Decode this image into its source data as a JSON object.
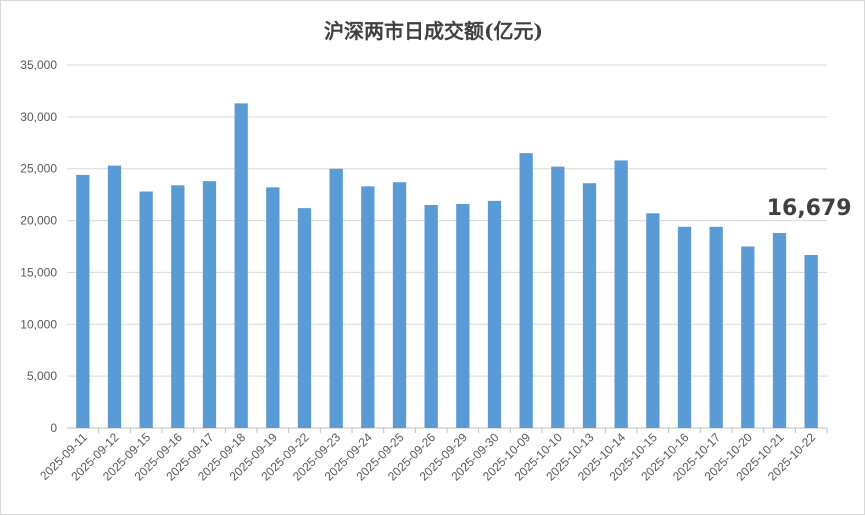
{
  "chart_data": {
    "type": "bar",
    "title": "沪深两市日成交额(亿元)",
    "categories": [
      "2025-09-11",
      "2025-09-12",
      "2025-09-15",
      "2025-09-16",
      "2025-09-17",
      "2025-09-18",
      "2025-09-19",
      "2025-09-22",
      "2025-09-23",
      "2025-09-24",
      "2025-09-25",
      "2025-09-26",
      "2025-09-29",
      "2025-09-30",
      "2025-10-09",
      "2025-10-10",
      "2025-10-13",
      "2025-10-14",
      "2025-10-15",
      "2025-10-16",
      "2025-10-17",
      "2025-10-20",
      "2025-10-21",
      "2025-10-22"
    ],
    "values": [
      24400,
      25300,
      22800,
      23400,
      23800,
      31300,
      23200,
      21200,
      25000,
      23300,
      23700,
      21500,
      21600,
      21900,
      26500,
      25200,
      23600,
      25800,
      20700,
      19400,
      19400,
      17500,
      18800,
      16679
    ],
    "ylim": [
      0,
      35000
    ],
    "yticks": [
      0,
      5000,
      10000,
      15000,
      20000,
      25000,
      30000,
      35000
    ],
    "ytick_labels": [
      "0",
      "5,000",
      "10,000",
      "15,000",
      "20,000",
      "25,000",
      "30,000",
      "35,000"
    ],
    "grid": true,
    "bar_color": "#5b9bd5",
    "annotation": {
      "text": "16,679",
      "category_index": 23
    }
  }
}
